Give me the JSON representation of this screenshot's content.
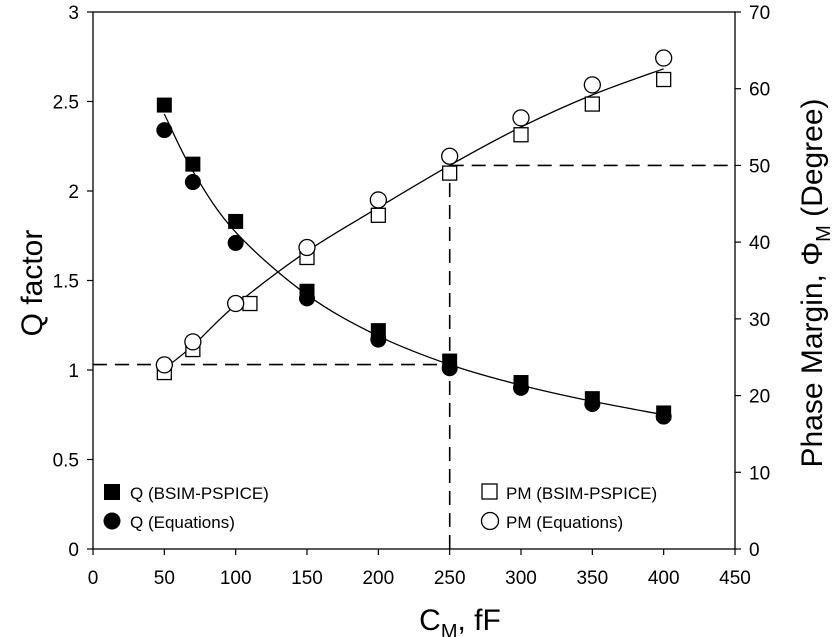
{
  "chart_data": {
    "type": "scatter",
    "xlabel": {
      "main": "C",
      "sub": "M",
      "rest": ", fF"
    },
    "ylabel_left": "Q factor",
    "ylabel_right": {
      "main": "Phase Margin, Φ",
      "sub": "M",
      "rest": " (Degree)"
    },
    "xlim": [
      0,
      450
    ],
    "ylim_left": [
      0,
      3
    ],
    "ylim_right": [
      0,
      70
    ],
    "x_ticks": [
      0,
      50,
      100,
      150,
      200,
      250,
      300,
      350,
      400,
      450
    ],
    "x_tick_labels": [
      "0",
      "50",
      "100",
      "150",
      "200",
      "250",
      "300",
      "350",
      "400",
      "450"
    ],
    "y_left_ticks": [
      0,
      0.5,
      1,
      1.5,
      2,
      2.5,
      3
    ],
    "y_left_tick_labels": [
      "0",
      "0.5",
      "1",
      "1.5",
      "2",
      "2.5",
      "3"
    ],
    "y_right_ticks": [
      0,
      10,
      20,
      30,
      40,
      50,
      60,
      70
    ],
    "y_right_tick_labels": [
      "0",
      "10",
      "20",
      "30",
      "40",
      "50",
      "60",
      "70"
    ],
    "series": [
      {
        "name": "Q (BSIM-PSPICE)",
        "axis": "left",
        "marker": "filled-square",
        "x": [
          50,
          70,
          100,
          150,
          200,
          250,
          300,
          350,
          400
        ],
        "y": [
          2.48,
          2.15,
          1.83,
          1.44,
          1.22,
          1.05,
          0.93,
          0.84,
          0.76
        ]
      },
      {
        "name": "Q (Equations)",
        "axis": "left",
        "marker": "filled-circle",
        "x": [
          50,
          70,
          100,
          150,
          200,
          250,
          300,
          350,
          400
        ],
        "y": [
          2.34,
          2.05,
          1.71,
          1.4,
          1.17,
          1.01,
          0.9,
          0.81,
          0.74
        ]
      },
      {
        "name": "PM (BSIM-PSPICE)",
        "axis": "right",
        "marker": "open-square",
        "x": [
          50,
          70,
          110,
          150,
          200,
          250,
          300,
          350,
          400
        ],
        "y": [
          23,
          26,
          32,
          38,
          43.5,
          49,
          54,
          58,
          61.2
        ]
      },
      {
        "name": "PM (Equations)",
        "axis": "right",
        "marker": "open-circle",
        "x": [
          50,
          70,
          100,
          150,
          200,
          250,
          300,
          350,
          400
        ],
        "y": [
          24,
          27,
          32,
          39.3,
          45.5,
          51.2,
          56.2,
          60.5,
          64
        ]
      }
    ],
    "fit_curves": [
      {
        "axis": "left",
        "x": [
          50,
          70,
          100,
          150,
          200,
          250,
          300,
          350,
          400
        ],
        "y": [
          2.43,
          2.11,
          1.77,
          1.42,
          1.19,
          1.03,
          0.915,
          0.825,
          0.75
        ]
      },
      {
        "axis": "right",
        "x": [
          50,
          70,
          100,
          150,
          200,
          250,
          300,
          350,
          400
        ],
        "y": [
          23.5,
          26.5,
          31.8,
          38.8,
          44.5,
          50,
          55,
          59.2,
          62.6
        ]
      }
    ],
    "reference_lines": [
      {
        "axis": "left",
        "points": [
          [
            0,
            1.03
          ],
          [
            250,
            1.03
          ]
        ]
      },
      {
        "axis": "right",
        "points": [
          [
            250,
            50
          ],
          [
            450,
            50
          ]
        ]
      },
      {
        "axis": "left",
        "points": [
          [
            250,
            0
          ],
          [
            250,
            2.1
          ]
        ]
      }
    ],
    "legend": {
      "left_placement": "bottom-left",
      "right_placement": "bottom-right",
      "left_entries": [
        "Q (BSIM-PSPICE)",
        "Q (Equations)"
      ],
      "right_entries": [
        "PM (BSIM-PSPICE)",
        "PM (Equations)"
      ]
    },
    "grid": false
  }
}
